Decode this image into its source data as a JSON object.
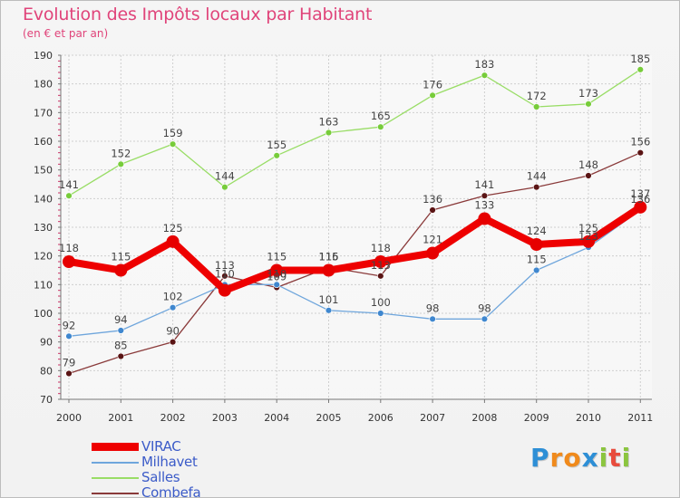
{
  "title": "Evolution des Impôts locaux par Habitant",
  "subtitle": "(en € et par an)",
  "brand": {
    "letters": [
      "P",
      "r",
      "o",
      "x",
      "i",
      "t",
      "i"
    ],
    "colors": [
      "#2e8fd6",
      "#f08a1c",
      "#f08a1c",
      "#2e8fd6",
      "#8bc53f",
      "#e84c3d",
      "#8bc53f"
    ]
  },
  "chart_data": {
    "type": "line",
    "title": "Evolution des Impôts locaux par Habitant",
    "subtitle": "(en € et par an)",
    "xlabel": "",
    "ylabel": "",
    "ylim": [
      70,
      190
    ],
    "yticks": [
      70,
      80,
      90,
      100,
      110,
      120,
      130,
      140,
      150,
      160,
      170,
      180,
      190
    ],
    "categories": [
      "2000",
      "2001",
      "2002",
      "2003",
      "2004",
      "2005",
      "2006",
      "2007",
      "2008",
      "2009",
      "2010",
      "2011"
    ],
    "grid": true,
    "legend_position": "bottom-left",
    "series": [
      {
        "name": "VIRAC",
        "color": "#ee0000",
        "marker_color": "#e60000",
        "emphasis": true,
        "values": [
          118,
          115,
          125,
          108,
          115,
          115,
          118,
          121,
          133,
          124,
          125,
          137
        ],
        "labels": [
          "118",
          "115",
          "125",
          "",
          "115",
          "115",
          "118",
          "121",
          "133",
          "124",
          "125",
          "137"
        ]
      },
      {
        "name": "Milhavet",
        "color": "#6fa6dc",
        "marker_color": "#3f87cf",
        "emphasis": false,
        "values": [
          92,
          94,
          102,
          110,
          110,
          101,
          100,
          98,
          98,
          115,
          123,
          136
        ],
        "labels": [
          "92",
          "94",
          "102",
          "110",
          "110",
          "101",
          "100",
          "98",
          "98",
          "115",
          "123",
          "136"
        ]
      },
      {
        "name": "Salles",
        "color": "#99dd66",
        "marker_color": "#77cc3a",
        "emphasis": false,
        "values": [
          141,
          152,
          159,
          144,
          155,
          163,
          165,
          176,
          183,
          172,
          173,
          185
        ],
        "labels": [
          "141",
          "152",
          "159",
          "144",
          "155",
          "163",
          "165",
          "176",
          "183",
          "172",
          "173",
          "185"
        ]
      },
      {
        "name": "Combefa",
        "color": "#8a3a3a",
        "marker_color": "#5a1414",
        "emphasis": false,
        "values": [
          79,
          85,
          90,
          113,
          109,
          116,
          113,
          136,
          141,
          144,
          148,
          156
        ],
        "labels": [
          "79",
          "85",
          "90",
          "113",
          "109",
          "116",
          "113",
          "136",
          "141",
          "144",
          "148",
          "156"
        ]
      }
    ]
  }
}
